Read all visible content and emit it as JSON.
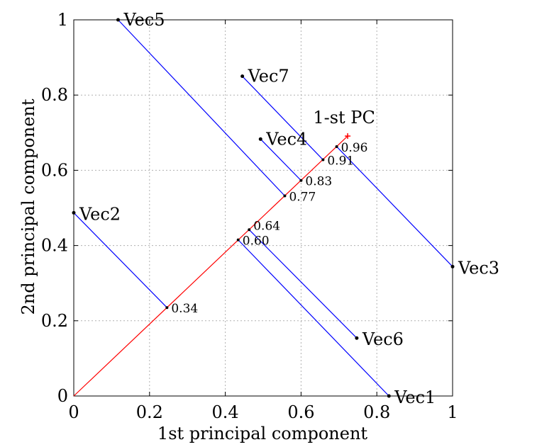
{
  "chart_data": {
    "type": "line",
    "xlabel": "1st principal component",
    "ylabel": "2nd principal component",
    "xlim": [
      0,
      1
    ],
    "ylim": [
      0,
      1
    ],
    "xticks": [
      "0",
      "0.2",
      "0.4",
      "0.6",
      "0.8",
      "1"
    ],
    "yticks": [
      "0",
      "0.2",
      "0.4",
      "0.6",
      "0.8",
      "1"
    ],
    "grid": true,
    "pc_axis": {
      "label": "1-st PC",
      "start": [
        0,
        0
      ],
      "end": [
        0.723,
        0.691
      ],
      "color": "#ff0000"
    },
    "vectors": [
      {
        "name": "Vec1",
        "x": 0.832,
        "y": 0.0,
        "proj_x": 0.434,
        "proj_y": 0.415,
        "proj_label": "0.60"
      },
      {
        "name": "Vec2",
        "x": 0.0,
        "y": 0.487,
        "proj_x": 0.246,
        "proj_y": 0.235,
        "proj_label": "0.34"
      },
      {
        "name": "Vec3",
        "x": 1.0,
        "y": 0.344,
        "proj_x": 0.694,
        "proj_y": 0.663,
        "proj_label": "0.96"
      },
      {
        "name": "Vec4",
        "x": 0.493,
        "y": 0.683,
        "proj_x": 0.6,
        "proj_y": 0.573,
        "proj_label": "0.83"
      },
      {
        "name": "Vec5",
        "x": 0.117,
        "y": 1.0,
        "proj_x": 0.557,
        "proj_y": 0.532,
        "proj_label": "0.77"
      },
      {
        "name": "Vec6",
        "x": 0.747,
        "y": 0.154,
        "proj_x": 0.463,
        "proj_y": 0.442,
        "proj_label": "0.64"
      },
      {
        "name": "Vec7",
        "x": 0.445,
        "y": 0.85,
        "proj_x": 0.658,
        "proj_y": 0.628,
        "proj_label": "0.91"
      }
    ],
    "colors": {
      "projection": "#0000ff",
      "pc": "#ff0000"
    }
  }
}
